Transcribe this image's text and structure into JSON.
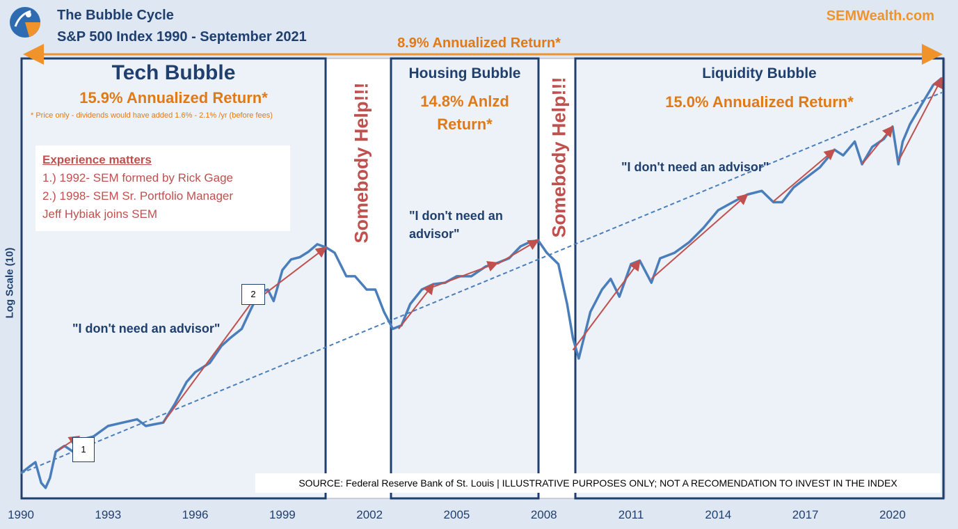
{
  "header": {
    "title": "The Bubble Cycle",
    "subtitle": "S&P 500 Index 1990  - September 2021",
    "brand": "SEMWealth.com",
    "overall_return": "8.9% Annualized Return*"
  },
  "boxes": {
    "tech": {
      "title": "Tech Bubble",
      "return": "15.9% Annualized Return*",
      "footnote": "* Price only - dividends would have added 1.6%  - 2.1% /yr (before fees)"
    },
    "housing": {
      "title": "Housing Bubble",
      "return_line1": "14.8% Anlzd",
      "return_line2": "Return*"
    },
    "liquidity": {
      "title": "Liquidity Bubble",
      "return": "15.0% Annualized Return*"
    }
  },
  "experience": {
    "heading": "Experience matters",
    "line1": "1.) 1992- SEM formed by Rick Gage",
    "line2": "2.) 1998- SEM Sr. Portfolio Manager",
    "line3": "Jeff Hybiak joins SEM"
  },
  "quotes": {
    "q1": "\"I don't need an advisor\"",
    "q2_line1": "\"I don't need an",
    "q2_line2": "advisor\"",
    "q3": "\"I don't need an advisor\""
  },
  "help": {
    "h1": "Somebody Help!!!",
    "h2": "Somebody Help!!!"
  },
  "markers": {
    "m1": "1",
    "m2": "2"
  },
  "source": "SOURCE: Federal Reserve Bank of St. Louis | ILLUSTRATIVE PURPOSES ONLY; NOT A RECOMENDATION TO INVEST IN THE INDEX",
  "colors": {
    "line": "#4a7ebb",
    "trend": "#4a7ebb",
    "arrow": "#c0504d",
    "orange": "#e07a17",
    "navy": "#1f3f6e"
  },
  "chart_data": {
    "type": "line",
    "title": "The Bubble Cycle",
    "ylabel": "Log Scale (10)",
    "xlim": [
      1990,
      2021.75
    ],
    "ylim": [
      280,
      5000
    ],
    "xticks": [
      "1990",
      "1993",
      "1996",
      "1999",
      "2002",
      "2005",
      "2008",
      "2011",
      "2014",
      "2017",
      "2020"
    ],
    "xtick_values": [
      1990,
      1993,
      1996,
      1999,
      2002,
      2005,
      2008,
      2011,
      2014,
      2017,
      2020
    ],
    "series": [
      {
        "name": "S&P 500",
        "x": [
          1990.0,
          1990.3,
          1990.5,
          1990.7,
          1990.85,
          1991.0,
          1991.2,
          1991.5,
          1991.8,
          1992.0,
          1992.5,
          1993.0,
          1993.5,
          1994.0,
          1994.3,
          1994.6,
          1994.9,
          1995.3,
          1995.7,
          1996.0,
          1996.5,
          1996.9,
          1997.2,
          1997.6,
          1997.9,
          1998.2,
          1998.5,
          1998.7,
          1999.0,
          1999.3,
          1999.6,
          1999.9,
          2000.2,
          2000.5,
          2000.8,
          2001.2,
          2001.5,
          2001.9,
          2002.2,
          2002.5,
          2002.8,
          2003.1,
          2003.4,
          2003.8,
          2004.2,
          2004.6,
          2005.0,
          2005.5,
          2006.0,
          2006.4,
          2006.8,
          2007.2,
          2007.5,
          2007.8,
          2008.1,
          2008.5,
          2008.8,
          2009.0,
          2009.2,
          2009.6,
          2010.0,
          2010.3,
          2010.6,
          2011.0,
          2011.3,
          2011.7,
          2012.0,
          2012.5,
          2013.0,
          2013.5,
          2014.0,
          2014.5,
          2015.0,
          2015.5,
          2015.9,
          2016.2,
          2016.6,
          2017.0,
          2017.5,
          2018.0,
          2018.3,
          2018.7,
          2018.95,
          2019.3,
          2019.7,
          2020.0,
          2020.2,
          2020.35,
          2020.6,
          2021.0,
          2021.4,
          2021.7
        ],
        "values": [
          330,
          345,
          355,
          310,
          300,
          320,
          380,
          395,
          380,
          410,
          420,
          450,
          460,
          470,
          450,
          455,
          460,
          520,
          600,
          640,
          680,
          760,
          800,
          850,
          960,
          1080,
          1100,
          1020,
          1250,
          1340,
          1360,
          1410,
          1480,
          1450,
          1400,
          1200,
          1200,
          1100,
          1100,
          950,
          850,
          870,
          1000,
          1100,
          1140,
          1150,
          1200,
          1200,
          1280,
          1310,
          1350,
          1460,
          1500,
          1520,
          1400,
          1300,
          1000,
          800,
          700,
          950,
          1100,
          1180,
          1050,
          1300,
          1330,
          1150,
          1350,
          1400,
          1500,
          1650,
          1850,
          1950,
          2050,
          2100,
          1950,
          1950,
          2150,
          2280,
          2450,
          2750,
          2650,
          2900,
          2500,
          2800,
          2950,
          3200,
          2500,
          2900,
          3250,
          3700,
          4200,
          4400
        ]
      },
      {
        "name": "Trend (8.9%)",
        "x": [
          1990,
          2021.7
        ],
        "values": [
          330,
          4000
        ]
      }
    ],
    "arrows": [
      {
        "from": [
          1991.3,
          385
        ],
        "to": [
          1992.0,
          420
        ]
      },
      {
        "from": [
          1994.9,
          460
        ],
        "to": [
          1998.2,
          1080
        ]
      },
      {
        "from": [
          1998.4,
          1070
        ],
        "to": [
          2000.5,
          1450
        ]
      },
      {
        "from": [
          2003.0,
          850
        ],
        "to": [
          2004.2,
          1140
        ]
      },
      {
        "from": [
          2004.2,
          1120
        ],
        "to": [
          2006.4,
          1310
        ]
      },
      {
        "from": [
          2006.4,
          1300
        ],
        "to": [
          2007.8,
          1520
        ]
      },
      {
        "from": [
          2009.0,
          740
        ],
        "to": [
          2011.3,
          1330
        ]
      },
      {
        "from": [
          2011.7,
          1180
        ],
        "to": [
          2015.0,
          2050
        ]
      },
      {
        "from": [
          2015.9,
          1960
        ],
        "to": [
          2018.0,
          2750
        ]
      },
      {
        "from": [
          2018.95,
          2500
        ],
        "to": [
          2020.0,
          3200
        ]
      },
      {
        "from": [
          2020.2,
          2550
        ],
        "to": [
          2021.7,
          4400
        ]
      }
    ],
    "regions": [
      {
        "name": "Tech Bubble",
        "x": [
          1990.0,
          2000.5
        ]
      },
      {
        "name": "Housing Bubble",
        "x": [
          2002.7,
          2007.8
        ]
      },
      {
        "name": "Liquidity Bubble",
        "x": [
          2009.1,
          2021.7
        ]
      }
    ]
  }
}
